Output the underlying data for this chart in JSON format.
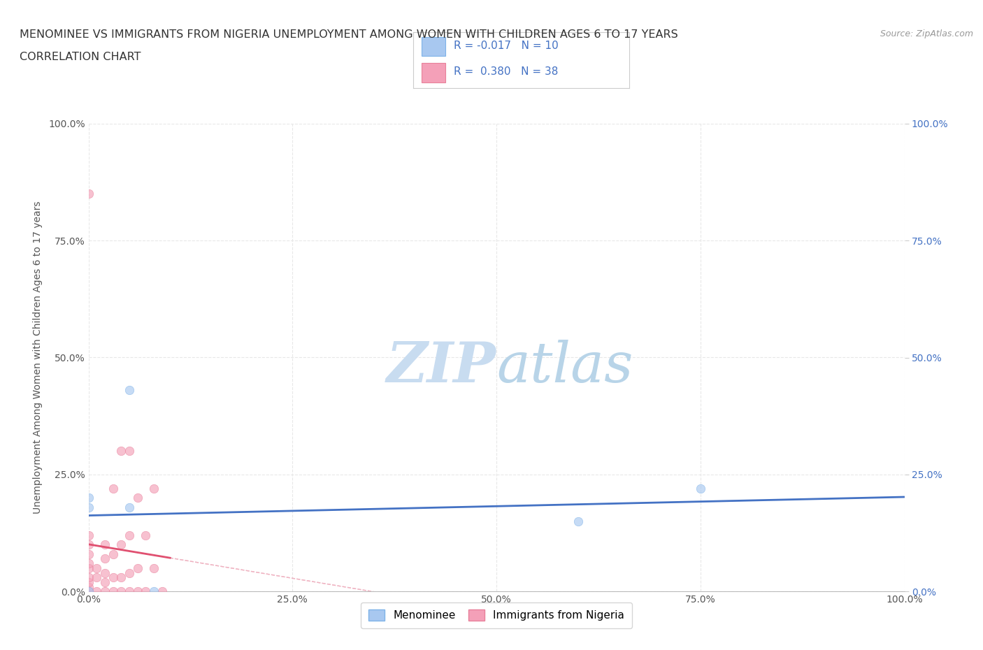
{
  "title_line1": "MENOMINEE VS IMMIGRANTS FROM NIGERIA UNEMPLOYMENT AMONG WOMEN WITH CHILDREN AGES 6 TO 17 YEARS",
  "title_line2": "CORRELATION CHART",
  "source_text": "Source: ZipAtlas.com",
  "ylabel": "Unemployment Among Women with Children Ages 6 to 17 years",
  "xlim": [
    0.0,
    1.0
  ],
  "ylim": [
    0.0,
    1.0
  ],
  "xticks": [
    0.0,
    0.25,
    0.5,
    0.75,
    1.0
  ],
  "yticks": [
    0.0,
    0.25,
    0.5,
    0.75,
    1.0
  ],
  "xtick_labels": [
    "0.0%",
    "25.0%",
    "50.0%",
    "75.0%",
    "100.0%"
  ],
  "ytick_labels": [
    "0.0%",
    "25.0%",
    "50.0%",
    "75.0%",
    "100.0%"
  ],
  "right_ytick_labels": [
    "100.0%",
    "75.0%",
    "50.0%",
    "25.0%",
    "0.0%"
  ],
  "right_yticks": [
    1.0,
    0.75,
    0.5,
    0.25,
    0.0
  ],
  "right_ytick_vals": [
    0.0,
    0.25,
    0.5,
    0.75,
    1.0
  ],
  "right_ytick_display": [
    "0.0%",
    "25.0%",
    "50.0%",
    "75.0%",
    "100.0%"
  ],
  "menominee_color": "#A8C8F0",
  "nigeria_color": "#F4A0B8",
  "menominee_edge_color": "#7EB3E8",
  "nigeria_edge_color": "#E8809A",
  "trendline_menominee_color": "#4472C4",
  "trendline_nigeria_dashed_color": "#E8A0B0",
  "trendline_nigeria_solid_color": "#E05070",
  "grid_color": "#E8E8E8",
  "grid_style": "--",
  "background_color": "#FFFFFF",
  "watermark_color": "#C8DCF0",
  "menominee_x": [
    0.0,
    0.0,
    0.0,
    0.05,
    0.05,
    0.08,
    0.75,
    0.6
  ],
  "menominee_y": [
    0.0,
    0.18,
    0.2,
    0.43,
    0.18,
    0.0,
    0.22,
    0.15
  ],
  "nigeria_x": [
    0.0,
    0.0,
    0.0,
    0.0,
    0.0,
    0.0,
    0.0,
    0.0,
    0.0,
    0.0,
    0.01,
    0.01,
    0.01,
    0.02,
    0.02,
    0.02,
    0.02,
    0.02,
    0.03,
    0.03,
    0.03,
    0.03,
    0.04,
    0.04,
    0.04,
    0.04,
    0.05,
    0.05,
    0.05,
    0.05,
    0.06,
    0.06,
    0.06,
    0.07,
    0.07,
    0.08,
    0.08,
    0.09
  ],
  "nigeria_y": [
    0.0,
    0.01,
    0.02,
    0.03,
    0.05,
    0.06,
    0.08,
    0.1,
    0.12,
    0.85,
    0.0,
    0.03,
    0.05,
    0.0,
    0.02,
    0.04,
    0.07,
    0.1,
    0.0,
    0.03,
    0.08,
    0.22,
    0.0,
    0.03,
    0.1,
    0.3,
    0.0,
    0.04,
    0.12,
    0.3,
    0.0,
    0.05,
    0.2,
    0.0,
    0.12,
    0.05,
    0.22,
    0.0
  ],
  "marker_size": 80,
  "alpha": 0.65,
  "title_fontsize": 11.5,
  "subtitle_fontsize": 11.5,
  "axis_label_fontsize": 10,
  "tick_fontsize": 10
}
